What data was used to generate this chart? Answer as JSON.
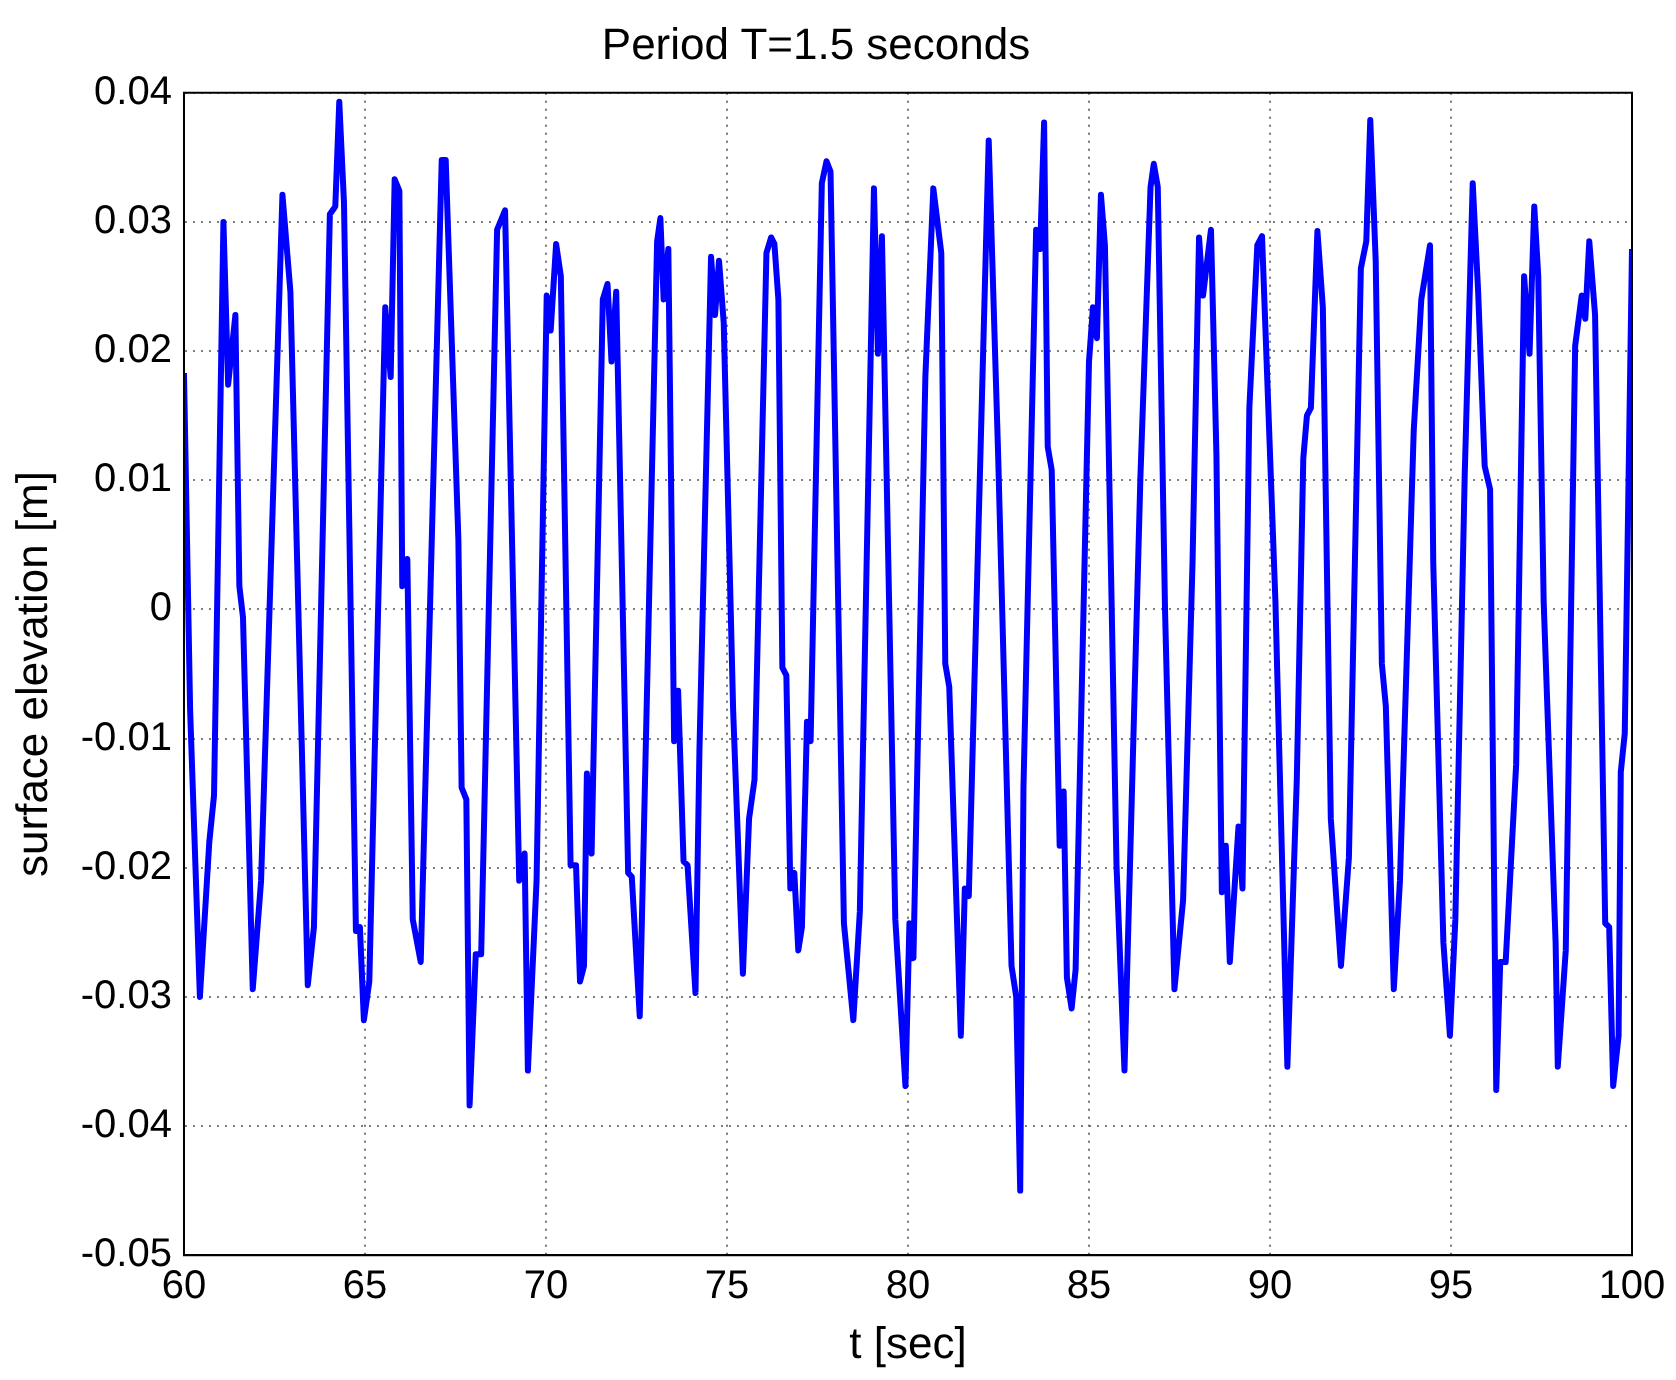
{
  "chart_data": {
    "type": "line",
    "title": "Period T=1.5 seconds",
    "xlabel": "t [sec]",
    "ylabel": "surface elevation [m]",
    "xlim": [
      60,
      100
    ],
    "xticks": [
      60,
      65,
      70,
      75,
      80,
      85,
      90,
      95,
      100
    ],
    "ylim": [
      -0.05,
      0.04
    ],
    "yticks": [
      -0.05,
      -0.04,
      -0.03,
      -0.02,
      -0.01,
      0,
      0.01,
      0.02,
      0.03,
      0.04
    ],
    "grid": true,
    "marker": "none",
    "line_style": "solid",
    "series": [
      {
        "color": "#0000ff",
        "x": [
          60,
          60.17,
          60.44,
          60.7,
          60.83,
          61.09,
          61.22,
          61.42,
          61.53,
          61.63,
          61.9,
          62.13,
          62.72,
          62.94,
          63.42,
          63.59,
          64.03,
          64.18,
          64.29,
          64.42,
          64.75,
          64.86,
          64.97,
          65.12,
          65.56,
          65.71,
          65.82,
          65.95,
          66.03,
          66.17,
          66.32,
          66.54,
          67.12,
          67.23,
          67.58,
          67.67,
          67.8,
          67.89,
          68.06,
          68.21,
          68.65,
          68.87,
          69.26,
          69.41,
          69.5,
          69.74,
          70.02,
          70.13,
          70.28,
          70.41,
          70.68,
          70.83,
          70.94,
          71.05,
          71.13,
          71.26,
          71.57,
          71.7,
          71.81,
          71.94,
          72.27,
          72.37,
          72.59,
          73.07,
          73.16,
          73.25,
          73.38,
          73.54,
          73.65,
          73.8,
          73.91,
          74.13,
          74.24,
          74.56,
          74.67,
          74.78,
          74.91,
          75.17,
          75.44,
          75.61,
          75.76,
          76.09,
          76.22,
          76.31,
          76.42,
          76.53,
          76.64,
          76.75,
          76.86,
          76.97,
          77.07,
          77.21,
          77.31,
          77.62,
          77.75,
          77.86,
          78.23,
          78.49,
          78.67,
          79.06,
          79.17,
          79.28,
          79.65,
          79.93,
          80.04,
          80.15,
          80.48,
          80.7,
          80.92,
          81.03,
          81.14,
          81.46,
          81.57,
          81.68,
          82.23,
          82.49,
          82.86,
          82.99,
          83.1,
          83.19,
          83.54,
          83.65,
          83.76,
          83.86,
          83.97,
          84.19,
          84.3,
          84.39,
          84.52,
          84.63,
          85,
          85.11,
          85.22,
          85.33,
          85.44,
          85.76,
          85.98,
          86.42,
          86.7,
          86.79,
          86.9,
          87.1,
          87.36,
          87.6,
          87.86,
          88.04,
          88.15,
          88.37,
          88.52,
          88.67,
          88.78,
          88.89,
          89.13,
          89.24,
          89.43,
          89.65,
          89.78,
          90.15,
          90.48,
          90.74,
          90.92,
          91.02,
          91.13,
          91.31,
          91.46,
          91.68,
          91.96,
          92.18,
          92.51,
          92.66,
          92.77,
          92.92,
          93.09,
          93.2,
          93.42,
          93.59,
          93.97,
          94.18,
          94.42,
          94.51,
          94.79,
          94.97,
          95.12,
          95.38,
          95.6,
          95.75,
          95.93,
          96.08,
          96.25,
          96.36,
          96.51,
          96.8,
          97.02,
          97.17,
          97.3,
          97.41,
          97.56,
          97.89,
          97.95,
          98.17,
          98.43,
          98.61,
          98.71,
          98.82,
          98.98,
          99.26,
          99.37,
          99.48,
          99.63,
          99.69,
          99.8,
          100
        ],
        "values": [
          0.0183,
          -0.0078,
          -0.03,
          -0.018,
          -0.0144,
          0.03,
          0.0174,
          0.0228,
          0.0018,
          -0.0006,
          -0.0294,
          -0.021,
          0.0321,
          0.0246,
          -0.0291,
          -0.0246,
          0.0306,
          0.0312,
          0.0393,
          0.0315,
          -0.0249,
          -0.0246,
          -0.0318,
          -0.0288,
          0.0234,
          0.018,
          0.0333,
          0.0324,
          0.0018,
          0.0039,
          -0.024,
          -0.0273,
          0.0348,
          0.0348,
          0.0054,
          -0.0138,
          -0.0147,
          -0.0384,
          -0.0267,
          -0.0267,
          0.0294,
          0.0309,
          -0.021,
          -0.0189,
          -0.0357,
          -0.021,
          0.0243,
          0.0216,
          0.0283,
          0.0258,
          -0.0198,
          -0.0198,
          -0.0288,
          -0.0276,
          -0.0127,
          -0.0189,
          0.024,
          0.0252,
          0.0192,
          0.0246,
          -0.0204,
          -0.0207,
          -0.0315,
          0.0285,
          0.0303,
          0.024,
          0.0279,
          -0.0102,
          -0.0063,
          -0.0195,
          -0.0198,
          -0.0297,
          -0.0108,
          0.0273,
          0.0228,
          0.027,
          0.0222,
          -0.0078,
          -0.0282,
          -0.0162,
          -0.0132,
          0.0276,
          0.0288,
          0.0283,
          0.024,
          -0.0045,
          -0.0051,
          -0.0216,
          -0.0204,
          -0.0264,
          -0.0246,
          -0.0087,
          -0.0102,
          0.033,
          0.0347,
          0.0339,
          -0.0243,
          -0.0318,
          -0.0234,
          0.0326,
          0.0198,
          0.0289,
          -0.024,
          -0.0369,
          -0.0243,
          -0.027,
          0.018,
          0.0326,
          0.0276,
          -0.0042,
          -0.006,
          -0.033,
          -0.0216,
          -0.0222,
          0.0363,
          0.012,
          -0.0276,
          -0.03,
          -0.045,
          -0.0138,
          0.0294,
          0.0279,
          0.0377,
          0.0126,
          0.0108,
          -0.0183,
          -0.0141,
          -0.0285,
          -0.0309,
          -0.0279,
          0.0192,
          0.0234,
          0.021,
          0.0321,
          0.0282,
          -0.0198,
          -0.0357,
          0.0102,
          0.0327,
          0.0345,
          0.0327,
          0,
          -0.0294,
          -0.0225,
          0.0036,
          0.0288,
          0.0243,
          0.0294,
          0.012,
          -0.0219,
          -0.0183,
          -0.0273,
          -0.0168,
          -0.0216,
          0.0156,
          0.0282,
          0.0289,
          0.0006,
          -0.0354,
          -0.0132,
          0.0117,
          0.015,
          0.0156,
          0.0293,
          0.0234,
          -0.0162,
          -0.0276,
          -0.0192,
          0.0264,
          0.0285,
          0.0379,
          0.027,
          -0.0042,
          -0.0075,
          -0.0294,
          -0.021,
          0.0138,
          0.024,
          0.0282,
          0.0036,
          -0.0258,
          -0.033,
          -0.024,
          0.0105,
          0.033,
          0.0246,
          0.0111,
          0.0093,
          -0.0372,
          -0.0273,
          -0.0273,
          -0.012,
          0.0258,
          0.0198,
          0.0312,
          0.0258,
          0.0006,
          -0.0258,
          -0.0354,
          -0.0264,
          0.0204,
          0.0243,
          0.0225,
          0.0285,
          0.0228,
          -0.0243,
          -0.0246,
          -0.0369,
          -0.033,
          -0.0126,
          -0.0096,
          0.0279
        ]
      }
    ]
  }
}
